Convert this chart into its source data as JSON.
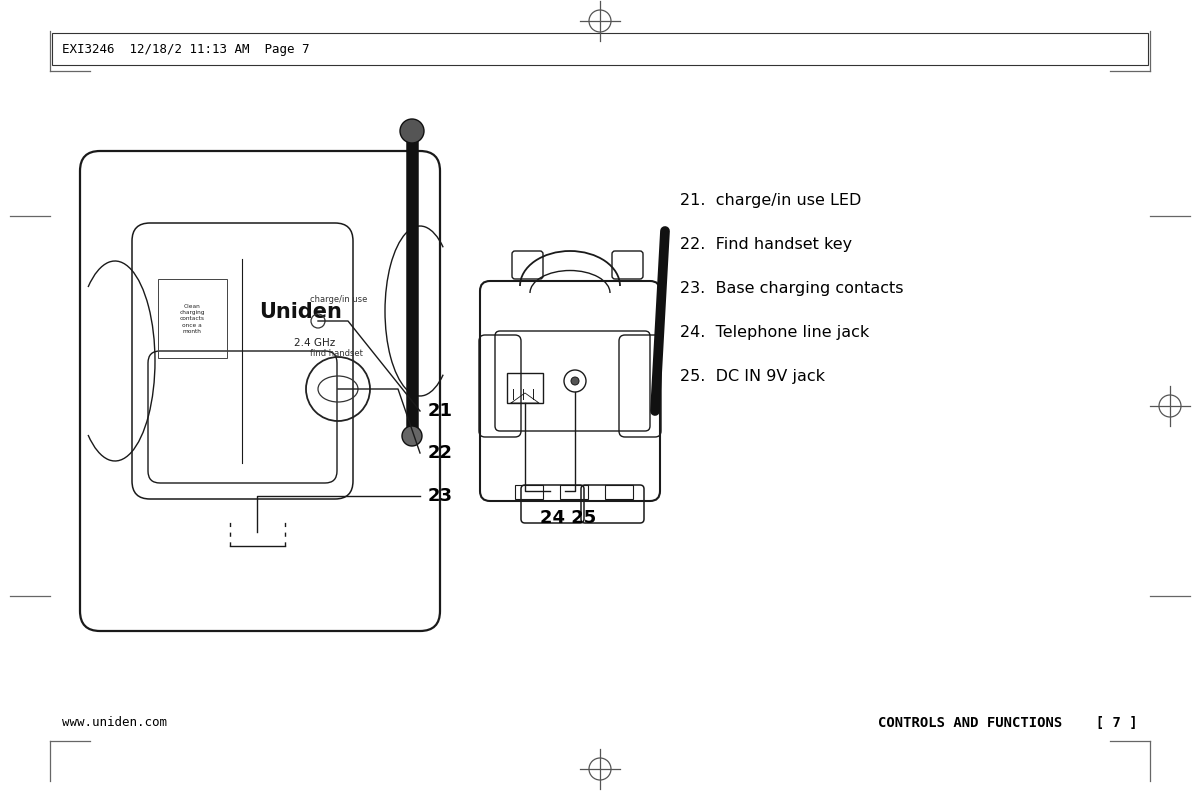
{
  "bg_color": "#ffffff",
  "header_text": "EXI3246  12/18/2 11:13 AM  Page 7",
  "footer_left": "www.uniden.com",
  "footer_right": "CONTROLS AND FUNCTIONS    [ 7 ]",
  "list_items": [
    "21.  charge/in use LED",
    "22.  Find handset key",
    "23.  Base charging contacts",
    "24.  Telephone line jack",
    "25.  DC IN 9V jack"
  ],
  "text_color": "#000000",
  "line_color": "#1a1a1a",
  "gray_line": "#666666"
}
